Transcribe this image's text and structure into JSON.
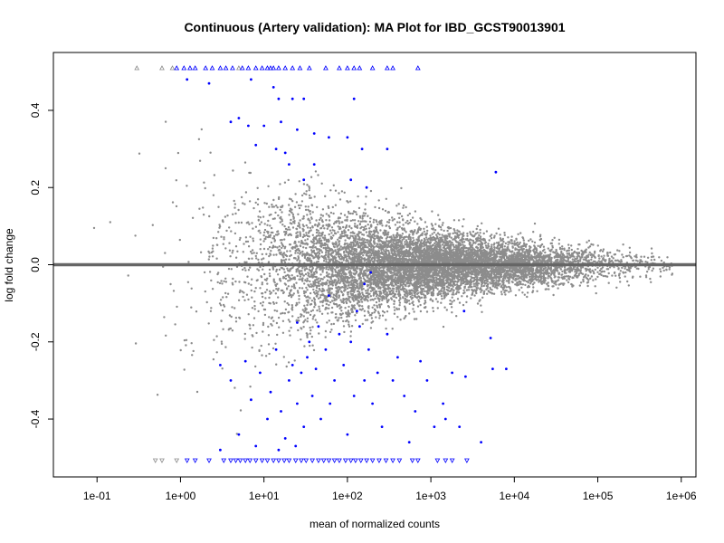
{
  "chart_data": {
    "type": "scatter",
    "title": "Continuous (Artery validation): MA Plot for IBD_GCST90013901",
    "xlabel": "mean of normalized counts",
    "ylabel": "log fold change",
    "x_scale": "log10",
    "xlim": [
      0.03,
      1500000
    ],
    "ylim": [
      -0.55,
      0.55
    ],
    "grid": false,
    "legend": "none",
    "x_ticks": [
      {
        "value": 0.1,
        "label": "1e-01"
      },
      {
        "value": 1,
        "label": "1e+00"
      },
      {
        "value": 10,
        "label": "1e+01"
      },
      {
        "value": 100,
        "label": "1e+02"
      },
      {
        "value": 1000,
        "label": "1e+03"
      },
      {
        "value": 10000,
        "label": "1e+04"
      },
      {
        "value": 100000,
        "label": "1e+05"
      },
      {
        "value": 1000000,
        "label": "1e+06"
      }
    ],
    "y_ticks": [
      {
        "value": -0.4,
        "label": "-0.4"
      },
      {
        "value": -0.2,
        "label": "-0.2"
      },
      {
        "value": 0.0,
        "label": "0.0"
      },
      {
        "value": 0.2,
        "label": "0.2"
      },
      {
        "value": 0.4,
        "label": "0.4"
      }
    ],
    "reference_line": {
      "y": 0,
      "color": "#666666"
    },
    "colors": {
      "non_significant": "#8c8c8c",
      "significant": "#0000ff"
    },
    "series": [
      {
        "color": "#0000ff",
        "points": [
          [
            1.2,
            0.48
          ],
          [
            2.2,
            0.47
          ],
          [
            7,
            0.48
          ],
          [
            13,
            0.46
          ],
          [
            15,
            0.43
          ],
          [
            22,
            0.43
          ],
          [
            30,
            0.43
          ],
          [
            120,
            0.43
          ],
          [
            4,
            0.37
          ],
          [
            5,
            0.38
          ],
          [
            6.5,
            0.36
          ],
          [
            10,
            0.36
          ],
          [
            16,
            0.37
          ],
          [
            25,
            0.35
          ],
          [
            40,
            0.34
          ],
          [
            8,
            0.31
          ],
          [
            18,
            0.29
          ],
          [
            60,
            0.33
          ],
          [
            100,
            0.33
          ],
          [
            150,
            0.3
          ],
          [
            300,
            0.3
          ],
          [
            20,
            0.26
          ],
          [
            110,
            0.22
          ],
          [
            170,
            0.2
          ],
          [
            6000,
            0.24
          ],
          [
            30,
            0.22
          ],
          [
            14,
            0.3
          ],
          [
            40,
            0.26
          ],
          [
            3,
            -0.26
          ],
          [
            4,
            -0.3
          ],
          [
            6,
            -0.25
          ],
          [
            7,
            -0.35
          ],
          [
            9,
            -0.28
          ],
          [
            11,
            -0.4
          ],
          [
            12,
            -0.33
          ],
          [
            14,
            -0.22
          ],
          [
            16,
            -0.38
          ],
          [
            18,
            -0.45
          ],
          [
            20,
            -0.3
          ],
          [
            22,
            -0.26
          ],
          [
            25,
            -0.36
          ],
          [
            28,
            -0.28
          ],
          [
            30,
            -0.42
          ],
          [
            33,
            -0.24
          ],
          [
            38,
            -0.34
          ],
          [
            42,
            -0.27
          ],
          [
            48,
            -0.4
          ],
          [
            55,
            -0.22
          ],
          [
            62,
            -0.36
          ],
          [
            70,
            -0.3
          ],
          [
            80,
            -0.18
          ],
          [
            90,
            -0.26
          ],
          [
            100,
            -0.44
          ],
          [
            110,
            -0.2
          ],
          [
            120,
            -0.34
          ],
          [
            140,
            -0.16
          ],
          [
            160,
            -0.3
          ],
          [
            180,
            -0.22
          ],
          [
            200,
            -0.36
          ],
          [
            230,
            -0.28
          ],
          [
            260,
            -0.42
          ],
          [
            300,
            -0.18
          ],
          [
            350,
            -0.3
          ],
          [
            400,
            -0.24
          ],
          [
            480,
            -0.34
          ],
          [
            550,
            -0.46
          ],
          [
            650,
            -0.38
          ],
          [
            750,
            -0.25
          ],
          [
            900,
            -0.3
          ],
          [
            1100,
            -0.42
          ],
          [
            1400,
            -0.36
          ],
          [
            1800,
            -0.28
          ],
          [
            2200,
            -0.42
          ],
          [
            2600,
            -0.29
          ],
          [
            5200,
            -0.19
          ],
          [
            5500,
            -0.27
          ],
          [
            8000,
            -0.27
          ],
          [
            4000,
            -0.46
          ],
          [
            5,
            -0.44
          ],
          [
            8,
            -0.47
          ],
          [
            15,
            -0.48
          ],
          [
            24,
            -0.47
          ],
          [
            35,
            -0.2
          ],
          [
            45,
            -0.16
          ],
          [
            130,
            -0.12
          ],
          [
            160,
            -0.05
          ],
          [
            190,
            -0.02
          ],
          [
            60,
            -0.08
          ],
          [
            25,
            -0.15
          ],
          [
            2500,
            -0.12
          ],
          [
            1500,
            -0.4
          ],
          [
            3,
            -0.48
          ]
        ]
      }
    ],
    "clipped_up": [
      {
        "x": [
          0.3,
          0.6,
          0.8,
          5
        ],
        "color": "#8c8c8c"
      },
      {
        "x": [
          0.9,
          1.1,
          1.3,
          1.5,
          2,
          2.4,
          3,
          3.5,
          4.2,
          5.5,
          6.5,
          8,
          9.5,
          11,
          12,
          13,
          15,
          18,
          22,
          27,
          35,
          55,
          80,
          100,
          120,
          140,
          200,
          300,
          350,
          700
        ],
        "color": "#0000ff"
      }
    ],
    "clipped_down": [
      {
        "x": [
          0.5,
          0.6,
          0.9
        ],
        "color": "#8c8c8c"
      },
      {
        "x": [
          1.2,
          1.5,
          2.2,
          3.3,
          4,
          4.6,
          5.2,
          6,
          6.8,
          8,
          9.5,
          11,
          13,
          15,
          17.5,
          20,
          24,
          28,
          32,
          38,
          45,
          52,
          60,
          70,
          80,
          95,
          110,
          125,
          145,
          170,
          200,
          240,
          290,
          350,
          420,
          600,
          700,
          1200,
          1500,
          1800,
          2700
        ],
        "color": "#0000ff"
      }
    ]
  }
}
